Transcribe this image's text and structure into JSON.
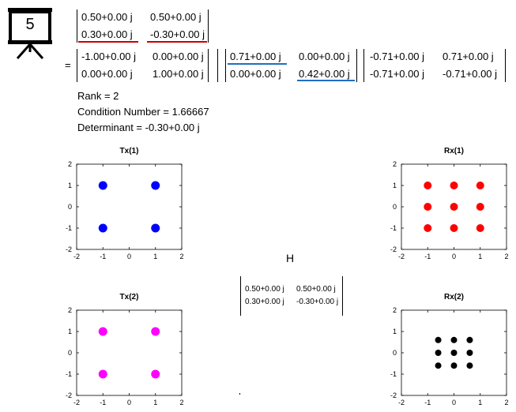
{
  "badge": {
    "number": "5"
  },
  "matrix_top": {
    "rows": [
      [
        "0.50+0.00 j",
        "0.50+0.00 j"
      ],
      [
        "0.30+0.00 j",
        "-0.30+0.00 j"
      ]
    ]
  },
  "equals": "=",
  "svd": {
    "U": [
      [
        "-1.00+0.00 j",
        "0.00+0.00 j"
      ],
      [
        "0.00+0.00 j",
        "1.00+0.00 j"
      ]
    ],
    "S": [
      [
        "0.71+0.00 j",
        "0.00+0.00 j"
      ],
      [
        "0.00+0.00 j",
        "0.42+0.00 j"
      ]
    ],
    "V": [
      [
        "-0.71+0.00 j",
        "0.71+0.00 j"
      ],
      [
        "-0.71+0.00 j",
        "-0.71+0.00 j"
      ]
    ]
  },
  "info": {
    "rank": "Rank = 2",
    "condition": "Condition Number = 1.66667",
    "determinant": "Determinant = -0.30+0.00 j"
  },
  "h_label": "H",
  "matrix_h": {
    "rows": [
      [
        "0.50+0.00 j",
        "0.50+0.00 j"
      ],
      [
        "0.30+0.00 j",
        "-0.30+0.00 j"
      ]
    ]
  },
  "colors": {
    "tx1": "#0000ff",
    "rx1": "#ff0000",
    "tx2": "#ff00ff",
    "rx2": "#000000",
    "underline_red": "#cc0000",
    "underline_blue": "#1f6fbf"
  },
  "chart_data": [
    {
      "type": "scatter",
      "title": "Tx(1)",
      "xlim": [
        -2,
        2
      ],
      "ylim": [
        -2,
        2
      ],
      "xticks": [
        "-2",
        "-1",
        "0",
        "1",
        "2"
      ],
      "yticks": [
        "2",
        "1",
        "0",
        "-1",
        "-2"
      ],
      "series": [
        {
          "points": [
            [
              -1,
              1
            ],
            [
              1,
              1
            ],
            [
              -1,
              -1
            ],
            [
              1,
              -1
            ]
          ]
        }
      ]
    },
    {
      "type": "scatter",
      "title": "Rx(1)",
      "xlim": [
        -2,
        2
      ],
      "ylim": [
        -2,
        2
      ],
      "xticks": [
        "-2",
        "-1",
        "0",
        "1",
        "2"
      ],
      "yticks": [
        "2",
        "1",
        "0",
        "-1",
        "-2"
      ],
      "series": [
        {
          "points": [
            [
              -1,
              1
            ],
            [
              0,
              1
            ],
            [
              1,
              1
            ],
            [
              -1,
              0
            ],
            [
              0,
              0
            ],
            [
              1,
              0
            ],
            [
              -1,
              -1
            ],
            [
              0,
              -1
            ],
            [
              1,
              -1
            ]
          ]
        }
      ]
    },
    {
      "type": "scatter",
      "title": "Tx(2)",
      "xlim": [
        -2,
        2
      ],
      "ylim": [
        -2,
        2
      ],
      "xticks": [
        "-2",
        "-1",
        "0",
        "1",
        "2"
      ],
      "yticks": [
        "2",
        "1",
        "0",
        "-1",
        "-2"
      ],
      "series": [
        {
          "points": [
            [
              -1,
              1
            ],
            [
              1,
              1
            ],
            [
              -1,
              -1
            ],
            [
              1,
              -1
            ]
          ]
        }
      ]
    },
    {
      "type": "scatter",
      "title": "Rx(2)",
      "xlim": [
        -2,
        2
      ],
      "ylim": [
        -2,
        2
      ],
      "xticks": [
        "-2",
        "-1",
        "0",
        "1",
        "2"
      ],
      "yticks": [
        "2",
        "1",
        "0",
        "-1",
        "-2"
      ],
      "series": [
        {
          "points": [
            [
              -0.6,
              0.6
            ],
            [
              0,
              0.6
            ],
            [
              0.6,
              0.6
            ],
            [
              -0.6,
              0
            ],
            [
              0,
              0
            ],
            [
              0.6,
              0
            ],
            [
              -0.6,
              -0.6
            ],
            [
              0,
              -0.6
            ],
            [
              0.6,
              -0.6
            ]
          ]
        }
      ]
    }
  ]
}
